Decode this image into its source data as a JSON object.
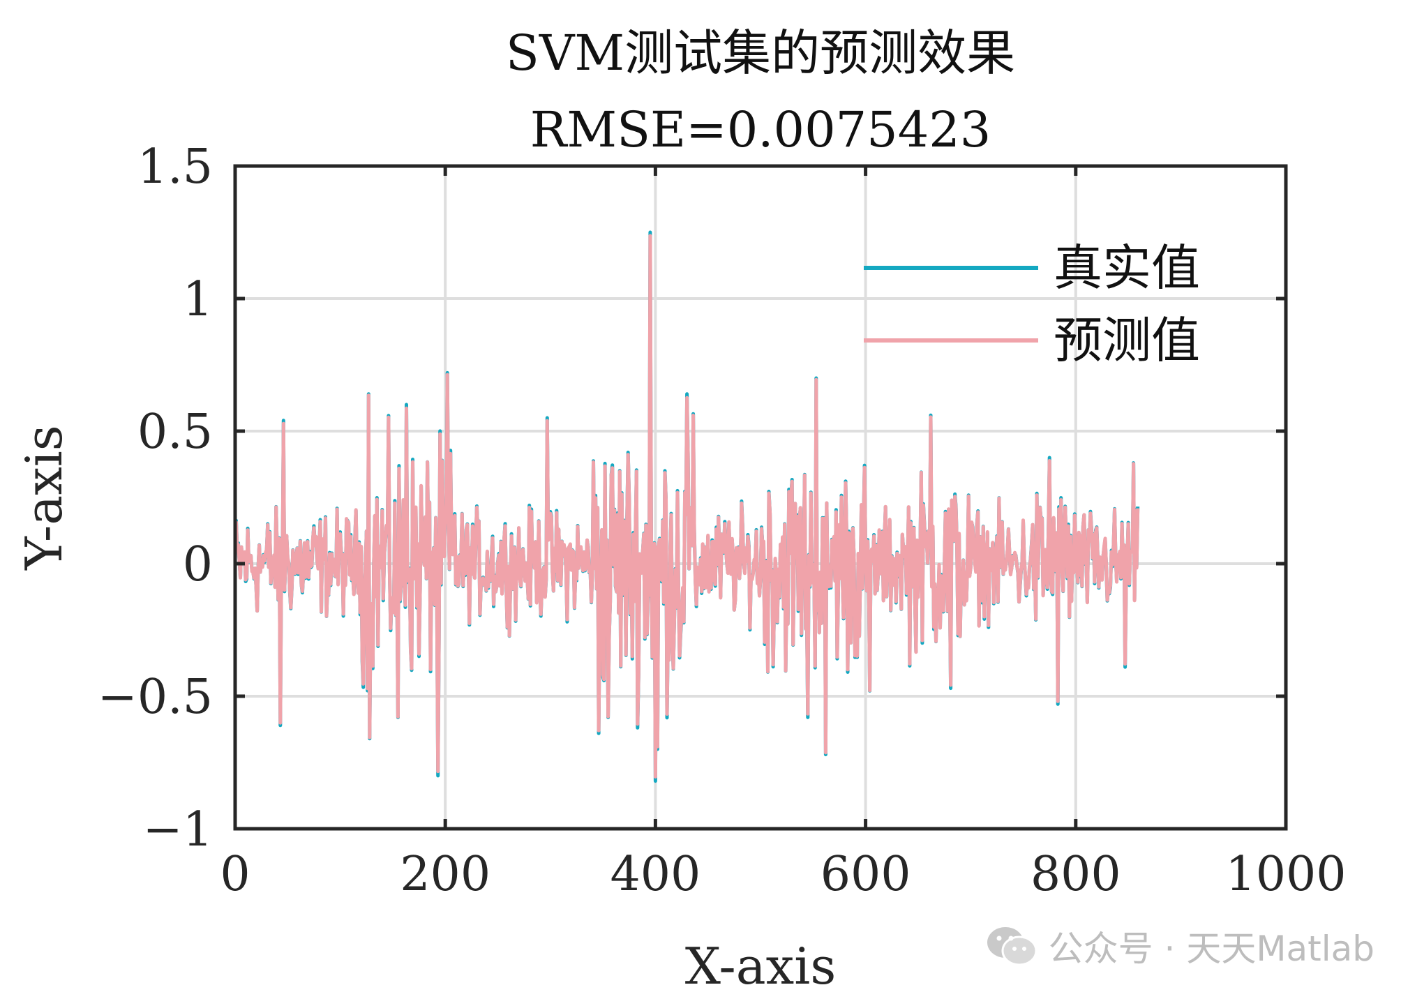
{
  "chart_data": {
    "type": "line",
    "title": "SVM测试集的预测效果",
    "subtitle": "RMSE=0.0075423",
    "xlabel": "X-axis",
    "ylabel": "Y-axis",
    "xlim": [
      0,
      1000
    ],
    "ylim": [
      -1,
      1.5
    ],
    "xticks": [
      0,
      200,
      400,
      600,
      800,
      1000
    ],
    "xtick_labels": [
      "0",
      "200",
      "400",
      "600",
      "800",
      "1000"
    ],
    "yticks": [
      -1,
      -0.5,
      0,
      0.5,
      1,
      1.5
    ],
    "ytick_labels": [
      "−1",
      "−0.5",
      "0",
      "0.5",
      "1",
      "1.5"
    ],
    "grid": true,
    "legend_position": "top-right",
    "n_points": 860,
    "series": [
      {
        "name": "真实值",
        "color": "#14a8c1"
      },
      {
        "name": "预测值",
        "color": "#f0a3aa"
      }
    ],
    "spikes": [
      [
        395,
        1.25
      ],
      [
        400,
        -0.82
      ],
      [
        402,
        -0.7
      ],
      [
        193,
        -0.8
      ],
      [
        202,
        0.72
      ],
      [
        127,
        0.64
      ],
      [
        128,
        -0.66
      ],
      [
        553,
        0.7
      ],
      [
        562,
        -0.72
      ],
      [
        46,
        0.54
      ],
      [
        43,
        -0.61
      ],
      [
        163,
        0.6
      ],
      [
        155,
        -0.58
      ],
      [
        297,
        0.55
      ],
      [
        346,
        -0.64
      ],
      [
        355,
        -0.58
      ],
      [
        430,
        0.64
      ],
      [
        545,
        -0.58
      ],
      [
        604,
        -0.48
      ],
      [
        662,
        0.56
      ],
      [
        681,
        -0.47
      ],
      [
        775,
        0.4
      ],
      [
        783,
        -0.53
      ],
      [
        855,
        0.38
      ],
      [
        847,
        -0.39
      ]
    ]
  },
  "watermark": {
    "icon": "wechat-icon",
    "text": "公众号 · 天天Matlab"
  },
  "colors": {
    "axis": "#262626",
    "grid": "#dedede",
    "background": "#ffffff"
  }
}
